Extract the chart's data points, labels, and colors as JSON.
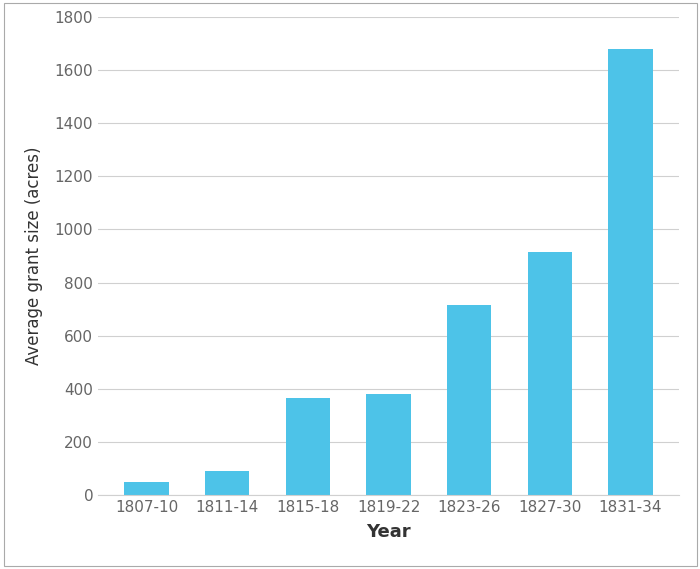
{
  "categories": [
    "1807-10",
    "1811-14",
    "1815-18",
    "1819-22",
    "1823-26",
    "1827-30",
    "1831-34"
  ],
  "values": [
    50,
    90,
    365,
    380,
    715,
    915,
    1680
  ],
  "bar_color": "#4dc3e8",
  "title": "",
  "xlabel": "Year",
  "ylabel": "Average grant size (acres)",
  "ylim": [
    0,
    1800
  ],
  "yticks": [
    0,
    200,
    400,
    600,
    800,
    1000,
    1200,
    1400,
    1600,
    1800
  ],
  "background_color": "#ffffff",
  "grid_color": "#d0d0d0",
  "xlabel_fontsize": 13,
  "ylabel_fontsize": 12,
  "tick_fontsize": 11,
  "bar_width": 0.55,
  "border_color": "#aaaaaa"
}
